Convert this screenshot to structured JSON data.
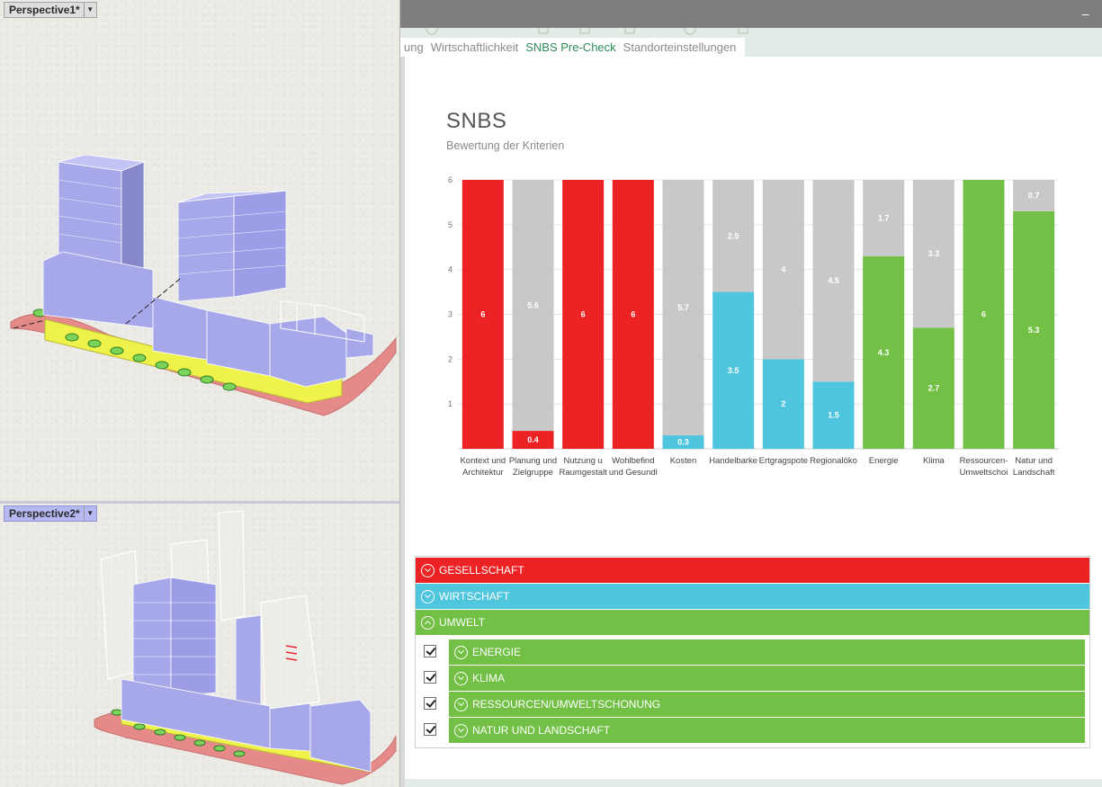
{
  "viewports": {
    "top": {
      "label": "Perspective1*"
    },
    "bottom": {
      "label": "Perspective2*"
    }
  },
  "window": {
    "minimize_label": "–"
  },
  "tabs": [
    {
      "label": "ung",
      "active": false
    },
    {
      "label": "Wirtschaftlichkeit",
      "active": false
    },
    {
      "label": "SNBS Pre-Check",
      "active": true
    },
    {
      "label": "Standorteinstellungen",
      "active": false
    }
  ],
  "chart": {
    "title": "SNBS",
    "subtitle": "Bewertung der Kriterien"
  },
  "chart_data": {
    "type": "bar",
    "stacked": true,
    "ylim": [
      0,
      6
    ],
    "yticks": [
      1,
      2,
      3,
      4,
      5,
      6
    ],
    "grid": true,
    "categories": [
      [
        "Kontext und",
        "Architektur"
      ],
      [
        "Planung und",
        "Zielgruppe"
      ],
      [
        "Nutzung u",
        "Raumgestalt"
      ],
      [
        "Wohlbefind",
        "und Gesundl"
      ],
      [
        "Kosten"
      ],
      [
        "Handelbarke"
      ],
      [
        "Ertgragspote"
      ],
      [
        "Regionalöko"
      ],
      [
        "Energie"
      ],
      [
        "Klima"
      ],
      [
        "Ressourcen-",
        "Umweltschoi"
      ],
      [
        "Natur und",
        "Landschaft"
      ]
    ],
    "series": [
      {
        "values": [
          6,
          0.4,
          6,
          6,
          0.3,
          3.5,
          2,
          1.5,
          4.3,
          2.7,
          6,
          5.3
        ]
      },
      {
        "values": [
          0,
          5.6,
          0,
          0,
          5.7,
          2.5,
          4,
          4.5,
          1.7,
          3.3,
          0,
          0.7
        ]
      }
    ],
    "bar_colors": [
      "#ed2224",
      "#ed2224",
      "#ed2224",
      "#ed2224",
      "#4fc6de",
      "#4fc6de",
      "#4fc6de",
      "#4fc6de",
      "#72c046",
      "#72c046",
      "#72c046",
      "#72c046"
    ],
    "remainder_color": "#c8c8c8"
  },
  "accordion": {
    "sections": [
      {
        "label": "GESELLSCHAFT",
        "color": "#ed2224",
        "expanded": false
      },
      {
        "label": "WIRTSCHAFT",
        "color": "#4fc6de",
        "expanded": false
      },
      {
        "label": "UMWELT",
        "color": "#72c046",
        "expanded": true
      }
    ],
    "umwelt_items": [
      {
        "label": "ENERGIE",
        "checked": true
      },
      {
        "label": "KLIMA",
        "checked": true
      },
      {
        "label": "RESSOURCEN/UMWELTSCHONUNG",
        "checked": true
      },
      {
        "label": "NATUR UND LANDSCHAFT",
        "checked": true
      }
    ]
  }
}
